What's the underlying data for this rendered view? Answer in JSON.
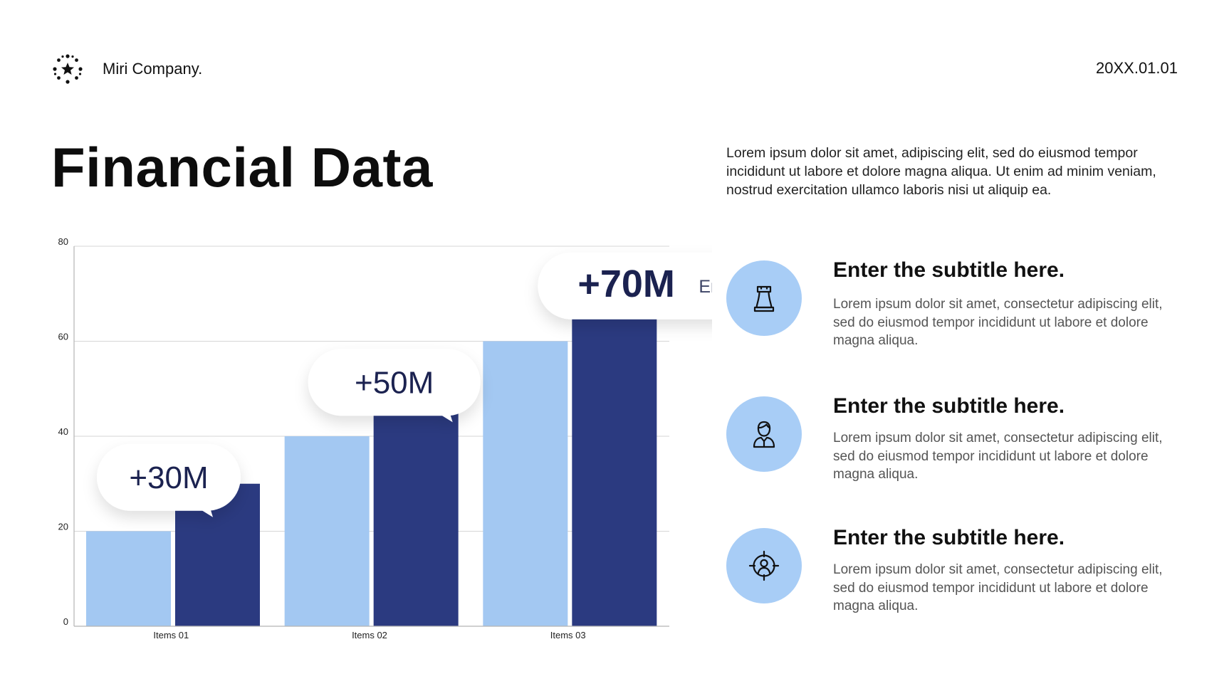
{
  "header": {
    "brand_name": "Miri Company.",
    "logo_icon": "flower-burst-logo",
    "date": "20XX.01.01"
  },
  "title": "Financial Data",
  "intro": "Lorem ipsum dolor sit amet, adipiscing elit, sed do eiusmod tempor incididunt ut labore et dolore magna aliqua. Ut enim ad minim veniam, nostrud exercitation ullamco laboris nisi ut aliquip ea.",
  "chart_data": {
    "type": "bar",
    "categories": [
      "Items 01",
      "Items 02",
      "Items 03"
    ],
    "series": [
      {
        "values": [
          20,
          40,
          60
        ],
        "color": "#a3c8f2"
      },
      {
        "values": [
          30,
          50,
          70
        ],
        "color": "#2b3a80"
      }
    ],
    "ylim": [
      0,
      80
    ],
    "yticks": [
      0,
      20,
      40,
      60,
      80
    ],
    "grid": true,
    "callouts": [
      {
        "category": "Items 01",
        "label": "+30M",
        "subtitle": ""
      },
      {
        "category": "Items 02",
        "label": "+50M",
        "subtitle": ""
      },
      {
        "category": "Items 03",
        "label": "+70M",
        "subtitle": "Enter subtitle"
      }
    ]
  },
  "features": [
    {
      "icon": "chess-rook-icon",
      "title": "Enter the subtitle here.",
      "body": "Lorem ipsum dolor sit amet, consectetur adipiscing elit, sed do eiusmod tempor incididunt ut labore et dolore magna aliqua."
    },
    {
      "icon": "person-icon",
      "title": "Enter the subtitle here.",
      "body": "Lorem ipsum dolor sit amet, consectetur adipiscing elit, sed do eiusmod tempor incididunt ut labore et dolore magna aliqua."
    },
    {
      "icon": "target-person-icon",
      "title": "Enter the subtitle here.",
      "body": "Lorem ipsum dolor sit amet, consectetur adipiscing elit, sed do eiusmod tempor incididunt ut labore et dolore magna aliqua."
    }
  ],
  "colors": {
    "accent_light": "#a3c8f2",
    "accent_dark": "#2b3a80",
    "icon_circle": "#a8cdf6",
    "callout_text": "#1b2250"
  }
}
